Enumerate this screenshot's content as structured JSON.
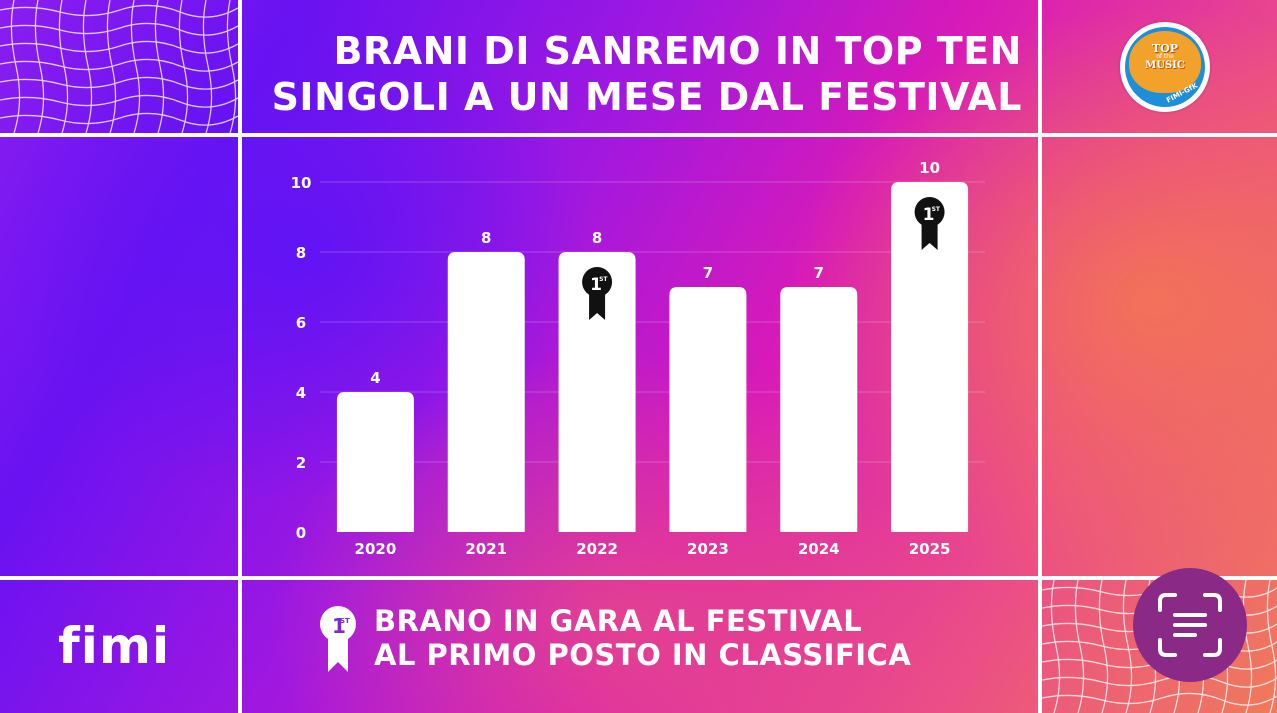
{
  "title": {
    "line1": "BRANI DI SANREMO IN TOP TEN",
    "line2": "SINGOLI A UN MESE DAL FESTIVAL"
  },
  "logo_top": {
    "line1": "TOP",
    "line2": "of the",
    "line3": "MUSIC",
    "line4": "FIMI-GfK"
  },
  "brand": "fimi",
  "legend": {
    "badge_text": "1ST",
    "line1": "BRANO IN GARA AL FESTIVAL",
    "line2": "AL PRIMO POSTO IN CLASSIFICA"
  },
  "icons": {
    "scan": "scan-text-icon",
    "badge": "first-place-ribbon-icon"
  },
  "colors": {
    "bars": "#ffffff",
    "badge": "#111111",
    "scan_button": "#8a2a86"
  },
  "chart_data": {
    "type": "bar",
    "categories": [
      "2020",
      "2021",
      "2022",
      "2023",
      "2024",
      "2025"
    ],
    "values": [
      4,
      8,
      8,
      7,
      7,
      10
    ],
    "data_labels": [
      "4",
      "8",
      "8",
      "7",
      "7",
      "10"
    ],
    "first_place": [
      false,
      false,
      true,
      false,
      false,
      true
    ],
    "yticks": [
      0,
      2,
      4,
      6,
      8,
      10
    ],
    "ylim": [
      0,
      10
    ],
    "grid": true,
    "title": "BRANI DI SANREMO IN TOP TEN SINGOLI A UN MESE DAL FESTIVAL",
    "xlabel": "",
    "ylabel": ""
  }
}
